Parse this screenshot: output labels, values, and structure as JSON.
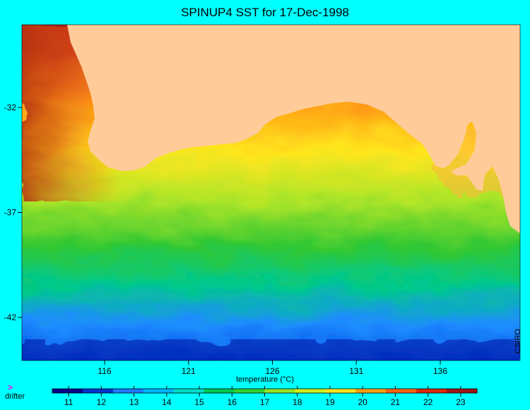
{
  "title": "SPINUP4 SST for 17-Dec-1998",
  "axes": {
    "longitude_ticks": [
      "116",
      "121",
      "126",
      "131",
      "136"
    ],
    "latitude_ticks": [
      "-32",
      "-37",
      "-42"
    ]
  },
  "colorbar": {
    "title": "temperature (°C)",
    "ticks": [
      "11",
      "12",
      "13",
      "14",
      "15",
      "16",
      "17",
      "18",
      "19",
      "20",
      "21",
      "22",
      "23"
    ],
    "colors": [
      "#00008b",
      "#0033cc",
      "#1e78ff",
      "#00b4ff",
      "#00dcc8",
      "#00c850",
      "#32d232",
      "#96e628",
      "#d2f01e",
      "#ffe61e",
      "#ffa014",
      "#ff6414",
      "#dc280a",
      "#a01414"
    ]
  },
  "legend": {
    "marker": ">",
    "label": "drifter"
  },
  "credit": "CSIRO",
  "colors": {
    "land": "#ffcc99",
    "background": "#00ffff"
  }
}
